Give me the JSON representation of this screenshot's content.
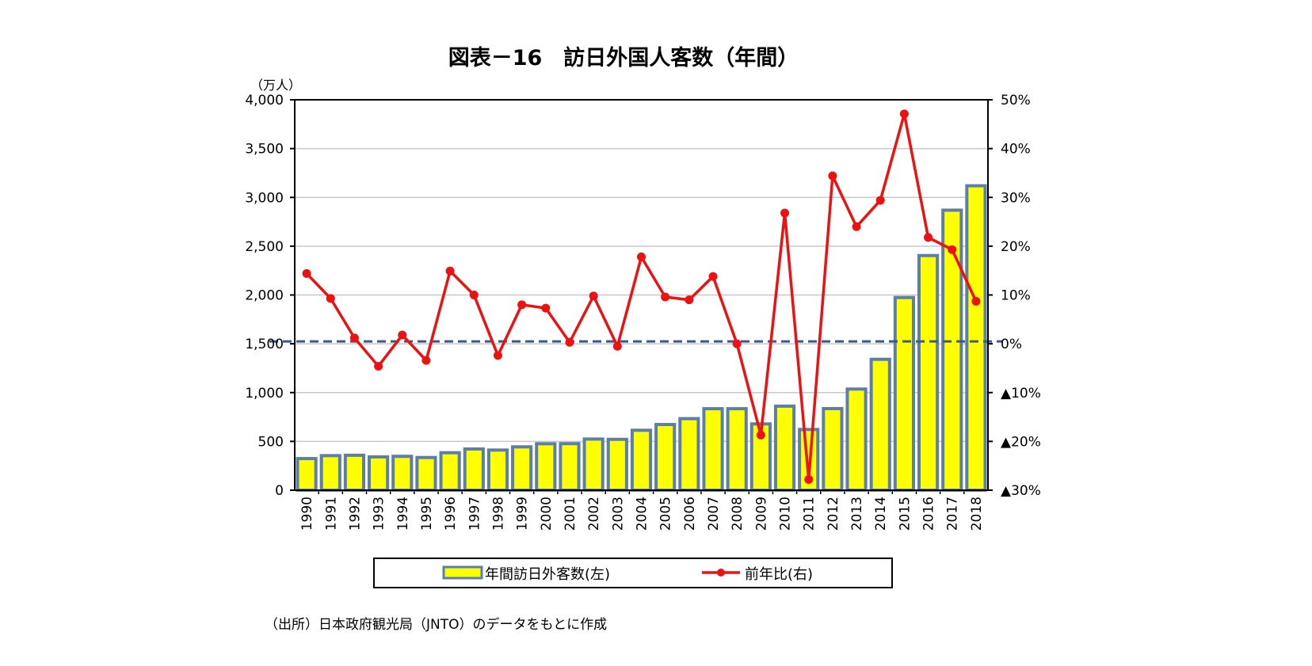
{
  "chart_data": {
    "type": "bar+line",
    "title": "図表－16　訪日外国人客数（年間）",
    "ylabel_left": "（万人）",
    "source": "（出所）日本政府観光局（JNTO）のデータをもとに作成",
    "categories": [
      "1990",
      "1991",
      "1992",
      "1993",
      "1994",
      "1995",
      "1996",
      "1997",
      "1998",
      "1999",
      "2000",
      "2001",
      "2002",
      "2003",
      "2004",
      "2005",
      "2006",
      "2007",
      "2008",
      "2009",
      "2010",
      "2011",
      "2012",
      "2013",
      "2014",
      "2015",
      "2016",
      "2017",
      "2018"
    ],
    "y_left": {
      "min": 0,
      "max": 4000,
      "ticks": [
        0,
        500,
        1000,
        1500,
        2000,
        2500,
        3000,
        3500,
        4000
      ],
      "tick_labels": [
        "0",
        "500",
        "1,000",
        "1,500",
        "2,000",
        "2,500",
        "3,000",
        "3,500",
        "4,000"
      ]
    },
    "y_right": {
      "min": -30,
      "max": 50,
      "ticks": [
        -30,
        -20,
        -10,
        0,
        10,
        20,
        30,
        40,
        50
      ],
      "tick_labels": [
        "▲30%",
        "▲20%",
        "▲10%",
        "0%",
        "10%",
        "20%",
        "30%",
        "40%",
        "50%"
      ]
    },
    "grid": true,
    "legend_placement": "bottom",
    "series": [
      {
        "name": "年間訪日外客数(左)",
        "type": "bar",
        "axis": "left",
        "color": "#ffff00",
        "border": "#5b7fa8",
        "values": [
          324,
          354,
          358,
          341,
          347,
          335,
          384,
          422,
          411,
          444,
          476,
          477,
          524,
          521,
          614,
          673,
          733,
          835,
          835,
          679,
          861,
          622,
          836,
          1036,
          1341,
          1974,
          2404,
          2869,
          3119
        ]
      },
      {
        "name": "前年比(右)",
        "type": "line",
        "axis": "right",
        "color": "#ee1111",
        "values": [
          14.4,
          9.3,
          1.2,
          -4.6,
          1.8,
          -3.4,
          14.9,
          10.0,
          -2.4,
          8.0,
          7.3,
          0.3,
          9.8,
          -0.5,
          17.8,
          9.6,
          9.0,
          13.8,
          0.0,
          -18.7,
          26.8,
          -27.8,
          34.4,
          24.0,
          29.4,
          47.1,
          21.8,
          19.3,
          8.7
        ]
      }
    ],
    "reference_line": {
      "value": 0,
      "axis": "right",
      "style": "dashed",
      "color": "#3a5a8a"
    }
  }
}
